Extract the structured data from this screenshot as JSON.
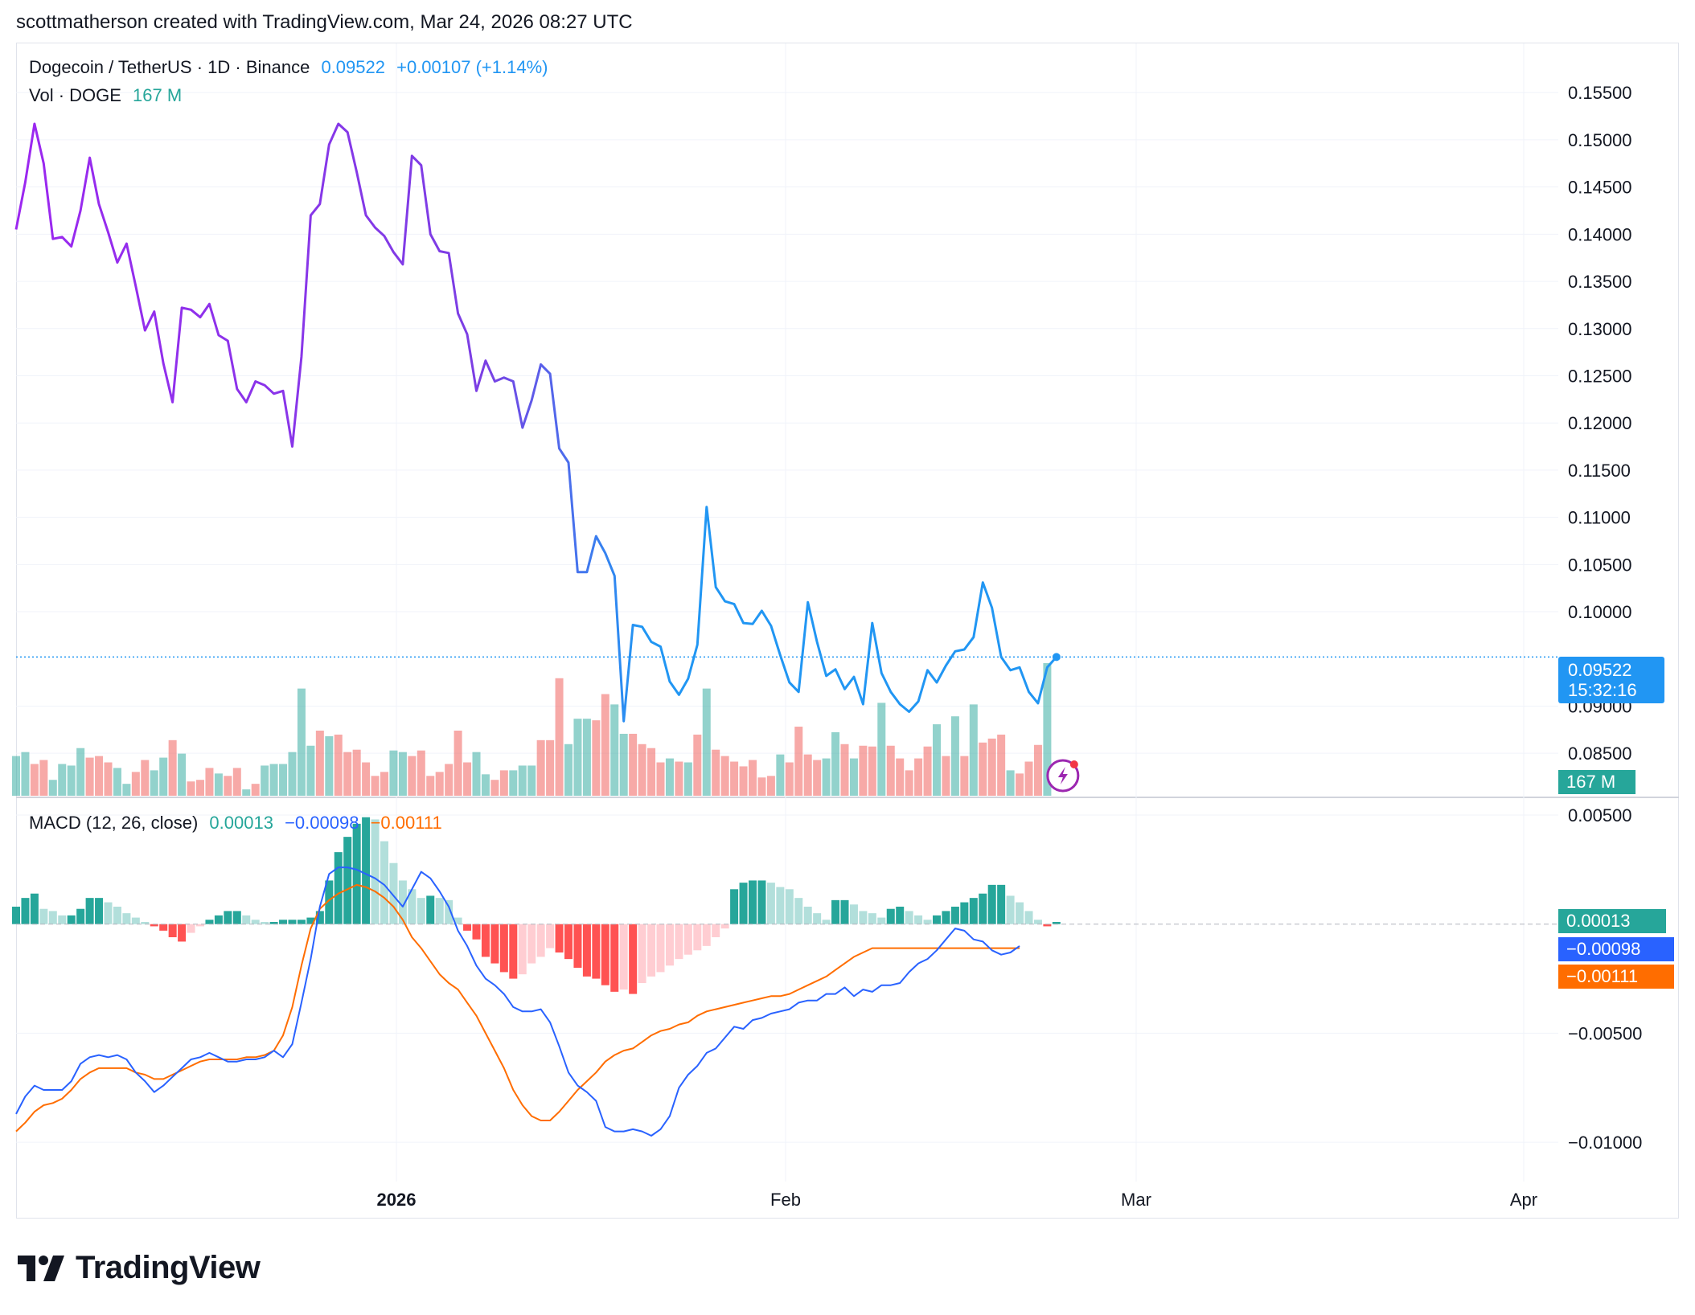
{
  "header": {
    "credit": "scottmatherson created with TradingView.com, Mar 24, 2026 08:27 UTC"
  },
  "legend": {
    "symbol": "Dogecoin / TetherUS · 1D · Binance",
    "price": "0.09522",
    "change": "+0.00107 (+1.14%)",
    "volume_label": "Vol · DOGE",
    "volume_value": "167 M",
    "macd_label": "MACD (12, 26, close)",
    "macd_hist_value": "0.00013",
    "macd_value": "−0.00098",
    "signal_value": "−0.00111"
  },
  "badges": {
    "price": "0.09522",
    "countdown": "15:32:16",
    "volume": "167 M",
    "macd_hist": "0.00013",
    "macd": "−0.00098",
    "signal": "−0.00111"
  },
  "colors": {
    "price_line_start": "#9c27f0",
    "price_line_end": "#2196f3",
    "volume_up": "#26a69a",
    "volume_down": "#ef5350",
    "macd_line": "#2962ff",
    "signal_line": "#ff6d00",
    "hist_up_strong": "#26a69a",
    "hist_up_weak": "#b2dfdb",
    "hist_down_strong": "#ff5252",
    "hist_down_weak": "#ffcdd2"
  },
  "logo": {
    "text": "TradingView",
    "icon": "tradingview-logo-icon"
  },
  "chart_data": [
    {
      "type": "line",
      "title": "Dogecoin / TetherUS · 1D · Binance",
      "ylim": [
        0.0805,
        0.158
      ],
      "y_ticks": [
        "0.15500",
        "0.15000",
        "0.14500",
        "0.14000",
        "0.13500",
        "0.13000",
        "0.12500",
        "0.12000",
        "0.11500",
        "0.11000",
        "0.10500",
        "0.10000",
        "0.09000",
        "0.08500"
      ],
      "x_ticks": [
        "2026",
        "Feb",
        "Mar",
        "Apr"
      ],
      "grid": true,
      "series": [
        {
          "values": [
            0.1405,
            0.1455,
            0.1517,
            0.1475,
            0.1395,
            0.1397,
            0.1387,
            0.1425,
            0.1481,
            0.1432,
            0.1402,
            0.137,
            0.139,
            0.1345,
            0.1298,
            0.1318,
            0.1263,
            0.1222,
            0.1322,
            0.132,
            0.1312,
            0.1326,
            0.1293,
            0.1287,
            0.1236,
            0.1222,
            0.1244,
            0.124,
            0.1231,
            0.1234,
            0.1175,
            0.127,
            0.142,
            0.1432,
            0.1495,
            0.1517,
            0.1508,
            0.1466,
            0.142,
            0.1407,
            0.1398,
            0.1381,
            0.1368,
            0.1483,
            0.1473,
            0.14,
            0.1382,
            0.138,
            0.1316,
            0.1294,
            0.1234,
            0.1266,
            0.1244,
            0.1248,
            0.1244,
            0.1195,
            0.1224,
            0.1262,
            0.1252,
            0.1173,
            0.1158,
            0.1042,
            0.1042,
            0.108,
            0.1062,
            0.1038,
            0.0884,
            0.0986,
            0.0984,
            0.0968,
            0.0963,
            0.0926,
            0.0912,
            0.0929,
            0.0965,
            0.1111,
            0.1026,
            0.1011,
            0.1008,
            0.0988,
            0.0987,
            0.1001,
            0.0985,
            0.0954,
            0.0925,
            0.0915,
            0.101,
            0.0968,
            0.0932,
            0.0939,
            0.0918,
            0.0931,
            0.0902,
            0.0988,
            0.0935,
            0.0915,
            0.0902,
            0.0894,
            0.0905,
            0.0938,
            0.0925,
            0.0943,
            0.0958,
            0.096,
            0.0973,
            0.1031,
            0.1004,
            0.0952,
            0.0938,
            0.0941,
            0.0915,
            0.0903,
            0.0941,
            0.0952
          ]
        }
      ]
    },
    {
      "type": "bar",
      "title": "Vol · DOGE",
      "current": "167 M",
      "series": [
        {
          "name": "volume",
          "values": [
            50,
            55,
            40,
            45,
            20,
            40,
            38,
            60,
            48,
            50,
            42,
            35,
            15,
            30,
            45,
            32,
            48,
            70,
            53,
            18,
            20,
            35,
            28,
            25,
            35,
            8,
            15,
            38,
            40,
            40,
            55,
            135,
            63,
            82,
            75,
            77,
            55,
            58,
            42,
            25,
            30,
            57,
            55,
            50,
            57,
            25,
            30,
            40,
            82,
            42,
            55,
            27,
            20,
            32,
            32,
            38,
            38,
            70,
            70,
            148,
            65,
            97,
            97,
            95,
            128,
            115,
            78,
            78,
            65,
            60,
            42,
            47,
            43,
            42,
            77,
            135,
            58,
            50,
            43,
            37,
            45,
            23,
            25,
            52,
            42,
            87,
            52,
            45,
            47,
            80,
            65,
            47,
            63,
            62,
            117,
            63,
            47,
            32,
            47,
            62,
            90,
            50,
            100,
            50,
            115,
            67,
            72,
            77,
            32,
            28,
            43,
            64,
            167
          ],
          "up": [
            1,
            1,
            0,
            0,
            1,
            1,
            1,
            1,
            0,
            0,
            0,
            1,
            1,
            0,
            0,
            1,
            1,
            0,
            1,
            0,
            0,
            0,
            1,
            0,
            0,
            1,
            0,
            1,
            1,
            1,
            1,
            1,
            1,
            0,
            1,
            0,
            0,
            0,
            0,
            0,
            0,
            1,
            1,
            0,
            0,
            0,
            0,
            0,
            0,
            0,
            1,
            1,
            0,
            0,
            1,
            1,
            1,
            0,
            0,
            0,
            1,
            1,
            1,
            0,
            0,
            1,
            1,
            0,
            0,
            0,
            0,
            1,
            0,
            1,
            0,
            1,
            0,
            0,
            0,
            0,
            0,
            0,
            0,
            1,
            0,
            0,
            0,
            0,
            1,
            1,
            0,
            1,
            0,
            0,
            1,
            0,
            0,
            0,
            0,
            0,
            1,
            0,
            1,
            0,
            1,
            0,
            0,
            0,
            1,
            0,
            0,
            0,
            1
          ]
        }
      ]
    },
    {
      "type": "line",
      "title": "MACD (12, 26, close)",
      "ylim": [
        -0.0118,
        0.0057
      ],
      "y_ticks": [
        "0.00500",
        "−0.00500",
        "−0.01000"
      ],
      "series": [
        {
          "name": "MACD",
          "values": [
            -0.0087,
            -0.0079,
            -0.0074,
            -0.0076,
            -0.0076,
            -0.0076,
            -0.0072,
            -0.0064,
            -0.0061,
            -0.006,
            -0.0061,
            -0.006,
            -0.0062,
            -0.0068,
            -0.0072,
            -0.0077,
            -0.0074,
            -0.007,
            -0.0066,
            -0.0062,
            -0.0061,
            -0.0059,
            -0.0061,
            -0.0063,
            -0.0063,
            -0.0062,
            -0.0062,
            -0.0061,
            -0.0058,
            -0.0061,
            -0.0055,
            -0.0036,
            -0.0016,
            0.0008,
            0.0023,
            0.0026,
            0.0026,
            0.0025,
            0.0023,
            0.0021,
            0.0018,
            0.0013,
            0.0008,
            0.0016,
            0.0024,
            0.0021,
            0.0015,
            0.0008,
            -0.0003,
            -0.001,
            -0.0019,
            -0.0025,
            -0.0028,
            -0.0032,
            -0.0038,
            -0.004,
            -0.004,
            -0.0039,
            -0.0045,
            -0.0056,
            -0.0068,
            -0.0074,
            -0.0077,
            -0.0081,
            -0.0093,
            -0.0095,
            -0.0095,
            -0.0094,
            -0.0095,
            -0.0097,
            -0.0094,
            -0.0088,
            -0.0075,
            -0.0069,
            -0.0065,
            -0.0059,
            -0.0057,
            -0.0052,
            -0.0047,
            -0.0048,
            -0.0044,
            -0.0043,
            -0.0041,
            -0.004,
            -0.0039,
            -0.0036,
            -0.0035,
            -0.0035,
            -0.0032,
            -0.0032,
            -0.0029,
            -0.0033,
            -0.003,
            -0.0031,
            -0.0028,
            -0.0028,
            -0.0027,
            -0.0022,
            -0.0018,
            -0.0016,
            -0.0012,
            -0.0007,
            -0.0002,
            -0.0003,
            -0.0007,
            -0.0008,
            -0.0012,
            -0.0014,
            -0.0013,
            -0.001
          ]
        },
        {
          "name": "Signal",
          "values": [
            -0.0095,
            -0.0091,
            -0.0086,
            -0.0083,
            -0.0082,
            -0.008,
            -0.0076,
            -0.0071,
            -0.0068,
            -0.0066,
            -0.0066,
            -0.0066,
            -0.0066,
            -0.0068,
            -0.0069,
            -0.0071,
            -0.0071,
            -0.0069,
            -0.0067,
            -0.0065,
            -0.0063,
            -0.0062,
            -0.0062,
            -0.0062,
            -0.0062,
            -0.0061,
            -0.0061,
            -0.006,
            -0.0058,
            -0.0051,
            -0.0038,
            -0.0019,
            -0.0002,
            0.0007,
            0.0011,
            0.0014,
            0.0016,
            0.0018,
            0.0017,
            0.0015,
            0.0012,
            0.0008,
            0.0002,
            -0.0006,
            -0.0011,
            -0.0017,
            -0.0023,
            -0.0027,
            -0.003,
            -0.0036,
            -0.0042,
            -0.005,
            -0.0058,
            -0.0066,
            -0.0076,
            -0.0083,
            -0.0088,
            -0.009,
            -0.009,
            -0.0086,
            -0.0081,
            -0.0076,
            -0.0072,
            -0.0068,
            -0.0063,
            -0.006,
            -0.0058,
            -0.0057,
            -0.0054,
            -0.0051,
            -0.0049,
            -0.0048,
            -0.0046,
            -0.0045,
            -0.0042,
            -0.004,
            -0.0039,
            -0.0038,
            -0.0037,
            -0.0036,
            -0.0035,
            -0.0034,
            -0.0033,
            -0.0033,
            -0.0032,
            -0.003,
            -0.0028,
            -0.0026,
            -0.0024,
            -0.0021,
            -0.0018,
            -0.0015,
            -0.0013,
            -0.0011,
            -0.0011,
            -0.0011,
            -0.0011,
            -0.0011,
            -0.0011,
            -0.0011,
            -0.0011,
            -0.0011,
            -0.0011,
            -0.0011,
            -0.0011,
            -0.0011,
            -0.0011,
            -0.0011,
            -0.0011,
            -0.0011
          ]
        },
        {
          "name": "Histogram",
          "values": [
            0.0008,
            0.0012,
            0.0014,
            0.0007,
            0.0006,
            0.0004,
            0.0004,
            0.0007,
            0.0012,
            0.0012,
            0.001,
            0.0008,
            0.0005,
            0.0003,
            0.0001,
            -0.0001,
            -0.0003,
            -0.0006,
            -0.0008,
            -0.0004,
            -0.0001,
            0.0002,
            0.0004,
            0.0006,
            0.0006,
            0.0004,
            0.0002,
            0.0001,
            0.0001,
            0.0002,
            0.0002,
            0.0002,
            0.0003,
            0.0006,
            0.002,
            0.0033,
            0.004,
            0.0046,
            0.0049,
            0.0048,
            0.0038,
            0.0028,
            0.002,
            0.0016,
            0.0012,
            0.0013,
            0.0012,
            0.0011,
            0.0003,
            -0.0003,
            -0.0007,
            -0.0015,
            -0.0018,
            -0.0022,
            -0.0025,
            -0.0023,
            -0.0018,
            -0.0015,
            -0.0011,
            -0.0013,
            -0.0016,
            -0.002,
            -0.0024,
            -0.0025,
            -0.0028,
            -0.0031,
            -0.003,
            -0.0032,
            -0.0027,
            -0.0024,
            -0.0022,
            -0.0019,
            -0.0016,
            -0.0014,
            -0.0012,
            -0.001,
            -0.0006,
            -0.0002,
            0.0016,
            0.0019,
            0.002,
            0.002,
            0.0019,
            0.0017,
            0.0016,
            0.0012,
            0.0008,
            0.0005,
            0.0002,
            0.0011,
            0.0011,
            0.0009,
            0.0006,
            0.0005,
            0.0003,
            0.0007,
            0.0008,
            0.0006,
            0.0004,
            0.0002,
            0.0004,
            0.0006,
            0.0008,
            0.001,
            0.0012,
            0.0014,
            0.0018,
            0.0018,
            0.0013,
            0.001,
            0.0006,
            0.0002,
            -0.0001,
            0.0001
          ]
        }
      ]
    }
  ]
}
